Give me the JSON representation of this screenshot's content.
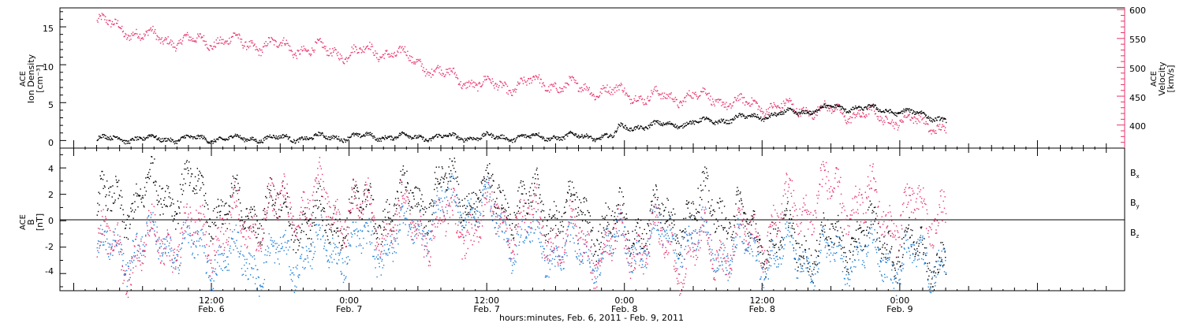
{
  "colors": {
    "black": "#000000",
    "pink": "#e8336b",
    "blue": "#1e7fd6"
  },
  "chart_data": [
    {
      "type": "scatter",
      "panel": "density-velocity",
      "ylabel_left": [
        "ACE",
        "Ion Density",
        "[cm⁻³]"
      ],
      "ylabel_right": [
        "ACE",
        "Velocity",
        "[km/s]"
      ],
      "yticks_left": [
        "0",
        "5",
        "10",
        "15"
      ],
      "ylim_left": [
        -1,
        17.5
      ],
      "yticks_right": [
        "400",
        "450",
        "500",
        "550",
        "600"
      ],
      "ylim_right": [
        360,
        603
      ],
      "series": [
        {
          "name": "Ion Density",
          "color": "#000000",
          "axis": "left",
          "x_hours": [
            0,
            6,
            12,
            18,
            20,
            24,
            30,
            36,
            42,
            45,
            45.5,
            48,
            52,
            56,
            60,
            64,
            66,
            70,
            72,
            74
          ],
          "y": [
            0.3,
            0.3,
            0.3,
            0.4,
            0.5,
            0.6,
            0.5,
            0.5,
            0.6,
            0.6,
            1.7,
            2.0,
            2.4,
            3.0,
            3.6,
            4.4,
            4.4,
            3.9,
            3.5,
            2.8
          ]
        },
        {
          "name": "Velocity",
          "color": "#e8336b",
          "axis": "right",
          "x_hours": [
            0,
            2,
            4,
            6,
            8,
            10,
            12,
            14,
            16,
            18,
            20,
            22,
            24,
            26,
            28,
            30,
            32,
            34,
            36,
            38,
            40,
            42,
            44,
            46,
            48,
            50,
            52,
            54,
            56,
            58,
            60,
            62,
            64,
            66,
            68,
            70,
            72,
            74
          ],
          "y": [
            580,
            570,
            555,
            550,
            545,
            548,
            545,
            540,
            538,
            532,
            530,
            525,
            530,
            525,
            510,
            490,
            478,
            470,
            468,
            475,
            470,
            465,
            462,
            455,
            450,
            448,
            452,
            445,
            438,
            435,
            430,
            428,
            425,
            420,
            415,
            410,
            405,
            395
          ]
        }
      ]
    },
    {
      "type": "scatter",
      "panel": "magnetic-field",
      "ylabel": [
        "ACE",
        "B",
        "[nT]"
      ],
      "yticks": [
        "-4",
        "-2",
        "0",
        "2",
        "4"
      ],
      "ylim": [
        -5.3,
        5.5
      ],
      "series": [
        {
          "name": "Bx",
          "color": "#000000",
          "x_hours": [
            0,
            3,
            6,
            9,
            12,
            15,
            18,
            20,
            22,
            24,
            27,
            30,
            33,
            36,
            39,
            42,
            45,
            48,
            51,
            54,
            57,
            60,
            63,
            66,
            69,
            72,
            74
          ],
          "y": [
            1.0,
            1.5,
            2.5,
            2.0,
            0.5,
            1.0,
            0.0,
            -0.5,
            1.0,
            0.5,
            1.5,
            2.5,
            2.0,
            1.5,
            1.0,
            0.5,
            -0.5,
            0.0,
            0.5,
            1.5,
            -1.0,
            -1.5,
            -2.0,
            -1.0,
            -1.5,
            -2.5,
            -2.5
          ]
        },
        {
          "name": "By",
          "color": "#1e7fd6",
          "x_hours": [
            0,
            3,
            6,
            9,
            12,
            15,
            18,
            21,
            24,
            27,
            30,
            33,
            36,
            39,
            42,
            45,
            48,
            51,
            54,
            57,
            60,
            63,
            66,
            69,
            72,
            74
          ],
          "y": [
            -2.5,
            -2.0,
            -1.5,
            -2.5,
            -3.0,
            -3.0,
            -2.5,
            -2.0,
            -2.0,
            -1.0,
            1.0,
            1.5,
            -1.0,
            -2.0,
            -2.5,
            -2.0,
            -1.5,
            -1.0,
            -2.0,
            -2.5,
            -2.5,
            -3.0,
            -2.5,
            -3.0,
            -3.0,
            -2.5
          ]
        },
        {
          "name": "Bz",
          "color": "#e8336b",
          "x_hours": [
            0,
            3,
            6,
            9,
            12,
            15,
            18,
            21,
            24,
            27,
            30,
            33,
            36,
            39,
            42,
            45,
            48,
            51,
            54,
            57,
            60,
            63,
            66,
            69,
            72,
            74
          ],
          "y": [
            -2.0,
            -2.5,
            -1.5,
            -1.0,
            -0.5,
            0.5,
            1.5,
            1.0,
            0.5,
            0.0,
            -0.5,
            0.0,
            0.5,
            -0.5,
            -2.0,
            -2.0,
            -1.5,
            -2.5,
            -2.0,
            -1.5,
            0.5,
            2.0,
            1.5,
            0.5,
            0.5,
            1.5
          ]
        }
      ]
    }
  ],
  "x_axis": {
    "labels": [
      {
        "hour": 10,
        "time": "12:00",
        "date": "Feb. 6"
      },
      {
        "hour": 22,
        "time": "0:00",
        "date": "Feb. 7"
      },
      {
        "hour": 34,
        "time": "12:00",
        "date": "Feb. 7"
      },
      {
        "hour": 46,
        "time": "0:00",
        "date": "Feb. 8"
      },
      {
        "hour": 58,
        "time": "12:00",
        "date": "Feb. 8"
      },
      {
        "hour": 70,
        "time": "0:00",
        "date": "Feb. 9"
      }
    ],
    "title": "hours:minutes, Feb.  6, 2011 - Feb.  9, 2011"
  }
}
